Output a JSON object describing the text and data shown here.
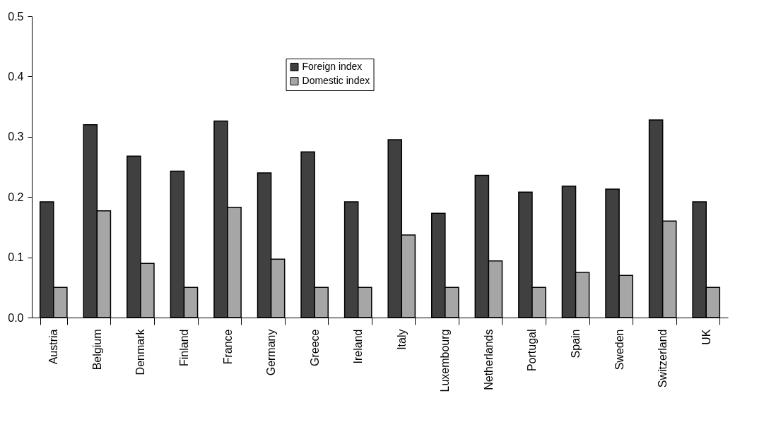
{
  "chart_data": {
    "type": "bar",
    "categories": [
      "Austria",
      "Belgium",
      "Denmark",
      "Finland",
      "France",
      "Germany",
      "Greece",
      "Ireland",
      "Italy",
      "Luxembourg",
      "Netherlands",
      "Portugal",
      "Spain",
      "Sweden",
      "Switzerland",
      "UK"
    ],
    "series": [
      {
        "name": "Foreign index",
        "color": "#404040",
        "values": [
          0.192,
          0.32,
          0.268,
          0.243,
          0.326,
          0.24,
          0.275,
          0.192,
          0.295,
          0.173,
          0.236,
          0.208,
          0.218,
          0.213,
          0.328,
          0.192
        ]
      },
      {
        "name": "Domestic index",
        "color": "#a6a6a6",
        "values": [
          0.05,
          0.177,
          0.09,
          0.05,
          0.183,
          0.097,
          0.05,
          0.05,
          0.137,
          0.05,
          0.094,
          0.05,
          0.075,
          0.07,
          0.16,
          0.05
        ]
      }
    ],
    "ylim": [
      0,
      0.5
    ],
    "yticks": [
      {
        "value": 0,
        "label": "0.0"
      },
      {
        "value": 0.1,
        "label": "0.1"
      },
      {
        "value": 0.2,
        "label": "0.2"
      },
      {
        "value": 0.3,
        "label": "0.3"
      },
      {
        "value": 0.4,
        "label": "0.4"
      },
      {
        "value": 0.5,
        "label": "0.5"
      }
    ],
    "grid": false,
    "legend": "top"
  }
}
